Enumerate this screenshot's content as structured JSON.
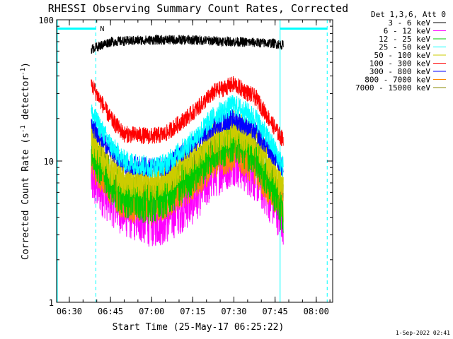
{
  "chart_data": {
    "type": "line",
    "title": "RHESSI Observing Summary Count Rates, Corrected",
    "xlabel": "Start Time (25-May-17 06:25:22)",
    "ylabel_main": "Corrected Count Rate (s",
    "ylabel_exp1": "-1",
    "ylabel_mid": " detector",
    "ylabel_exp2": "-1",
    "ylabel_end": ")",
    "footer": "1-Sep-2022 02:41",
    "legend_header": "Det 1,3,6, Att 0",
    "y_scale": "log",
    "ylim": [
      1,
      100
    ],
    "y_ticks": [
      {
        "value": 1,
        "label": "1"
      },
      {
        "value": 10,
        "label": "10"
      },
      {
        "value": 100,
        "label": "100"
      }
    ],
    "xlim": [
      "06:25:22",
      "08:06:00"
    ],
    "x_ticks": [
      "06:30",
      "06:45",
      "07:00",
      "07:15",
      "07:30",
      "07:45",
      "08:00"
    ],
    "flags": {
      "night_bar_label": "N",
      "night_intervals": [
        [
          "06:25:22",
          "06:39:40"
        ],
        [
          "07:46:50",
          "08:04:00"
        ]
      ],
      "night_color": "#00ffff"
    },
    "series": [
      {
        "name": "3 - 6 keV",
        "color": "#000000",
        "x": [
          "06:38:00",
          "06:45:00",
          "07:00:00",
          "07:15:00",
          "07:30:00",
          "07:45:00",
          "07:48:00"
        ],
        "values": [
          62,
          70,
          72,
          72,
          70,
          68,
          66
        ]
      },
      {
        "name": "6 - 12 keV",
        "color": "#ff00ff",
        "x": [
          "06:38:00",
          "06:45:00",
          "06:50:00",
          "07:00:00",
          "07:05:00",
          "07:15:00",
          "07:23:00",
          "07:30:00",
          "07:38:00",
          "07:45:00",
          "07:48:00"
        ],
        "values": [
          7.5,
          5.5,
          4.5,
          3.8,
          4.0,
          5.5,
          8.5,
          10.5,
          8.0,
          5.0,
          4.0
        ]
      },
      {
        "name": "12 - 25 keV",
        "color": "#00cc00",
        "x": [
          "06:38:00",
          "06:45:00",
          "06:50:00",
          "07:00:00",
          "07:05:00",
          "07:15:00",
          "07:23:00",
          "07:30:00",
          "07:38:00",
          "07:45:00",
          "07:48:00"
        ],
        "values": [
          12,
          7,
          5.5,
          5,
          5.5,
          8,
          12,
          14,
          11,
          6,
          4
        ]
      },
      {
        "name": "25 - 50 keV",
        "color": "#00ffff",
        "x": [
          "06:38:00",
          "06:45:00",
          "06:50:00",
          "07:00:00",
          "07:05:00",
          "07:15:00",
          "07:23:00",
          "07:30:00",
          "07:38:00",
          "07:45:00",
          "07:48:00"
        ],
        "values": [
          22,
          13,
          10,
          9,
          9.5,
          14,
          21,
          25,
          20,
          12,
          9
        ]
      },
      {
        "name": "50 - 100 keV",
        "color": "#cccc00",
        "x": [
          "06:38:00",
          "06:45:00",
          "06:50:00",
          "07:00:00",
          "07:05:00",
          "07:15:00",
          "07:23:00",
          "07:30:00",
          "07:38:00",
          "07:45:00",
          "07:48:00"
        ],
        "values": [
          15,
          9,
          7.5,
          7,
          7.5,
          11,
          15,
          17,
          14,
          8.5,
          6.5
        ]
      },
      {
        "name": "100 - 300 keV",
        "color": "#ff0000",
        "x": [
          "06:38:00",
          "06:45:00",
          "06:50:00",
          "07:00:00",
          "07:05:00",
          "07:15:00",
          "07:23:00",
          "07:30:00",
          "07:38:00",
          "07:45:00",
          "07:48:00"
        ],
        "values": [
          35,
          20,
          15.5,
          15,
          15.5,
          22,
          31,
          35,
          28,
          17,
          14
        ]
      },
      {
        "name": "300 - 800 keV",
        "color": "#0000ff",
        "x": [
          "06:38:00",
          "06:45:00",
          "06:50:00",
          "07:00:00",
          "07:05:00",
          "07:15:00",
          "07:23:00",
          "07:30:00",
          "07:38:00",
          "07:45:00",
          "07:48:00"
        ],
        "values": [
          18,
          12,
          9.5,
          9,
          9.2,
          13,
          18,
          20,
          16,
          10.5,
          9
        ]
      },
      {
        "name": "800 - 7000 keV",
        "color": "#ff8800",
        "x": [
          "06:38:00",
          "06:45:00",
          "06:50:00",
          "07:00:00",
          "07:05:00",
          "07:15:00",
          "07:23:00",
          "07:30:00",
          "07:38:00",
          "07:45:00",
          "07:48:00"
        ],
        "values": [
          10,
          6.5,
          5,
          4.7,
          5,
          7,
          10,
          11.5,
          9,
          5.5,
          4.8
        ]
      },
      {
        "name": "7000 - 15000 keV",
        "color": "#888800",
        "x": [
          "06:38:00",
          "06:45:00",
          "06:50:00",
          "07:00:00",
          "07:05:00",
          "07:15:00",
          "07:23:00",
          "07:30:00",
          "07:38:00",
          "07:45:00",
          "07:48:00"
        ],
        "values": [
          12,
          8,
          6.5,
          6,
          6.2,
          8.5,
          12,
          13.5,
          11,
          7,
          5.5
        ]
      }
    ]
  }
}
